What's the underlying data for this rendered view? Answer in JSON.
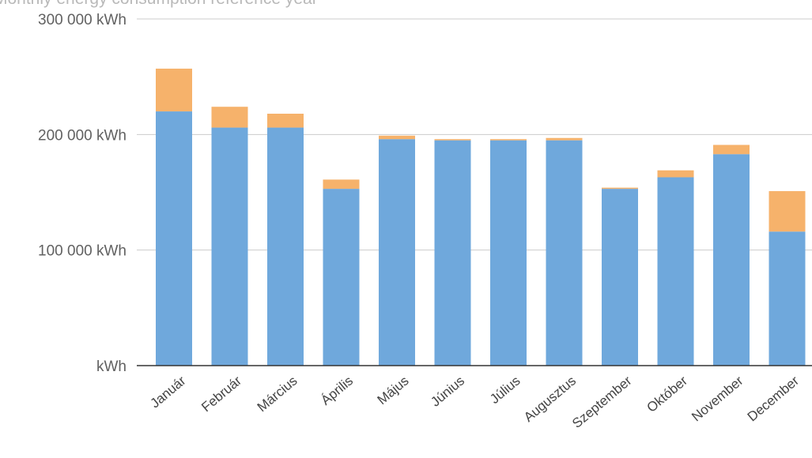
{
  "chart_data": {
    "type": "bar",
    "stacked": true,
    "title": "Monthly energy consumption reference year",
    "xlabel": "",
    "ylabel": "",
    "ylim": [
      0,
      300000
    ],
    "yticks": [
      0,
      100000,
      200000,
      300000
    ],
    "ytick_labels": [
      "kWh",
      "100 000  kWh",
      "200 000  kWh",
      "300 000  kWh"
    ],
    "grid": true,
    "categories": [
      "Január",
      "Február",
      "Március",
      "Április",
      "Május",
      "Június",
      "Július",
      "Augusztus",
      "Szeptember",
      "Október",
      "November",
      "December"
    ],
    "series": [
      {
        "color": "#6fa8dc",
        "values": [
          220000,
          206000,
          206000,
          153000,
          196000,
          195000,
          195000,
          195000,
          153000,
          163000,
          183000,
          116000
        ]
      },
      {
        "color": "#f6b26b",
        "values": [
          37000,
          18000,
          12000,
          8000,
          3000,
          1000,
          1000,
          2000,
          1000,
          6000,
          8000,
          35000
        ]
      }
    ]
  }
}
